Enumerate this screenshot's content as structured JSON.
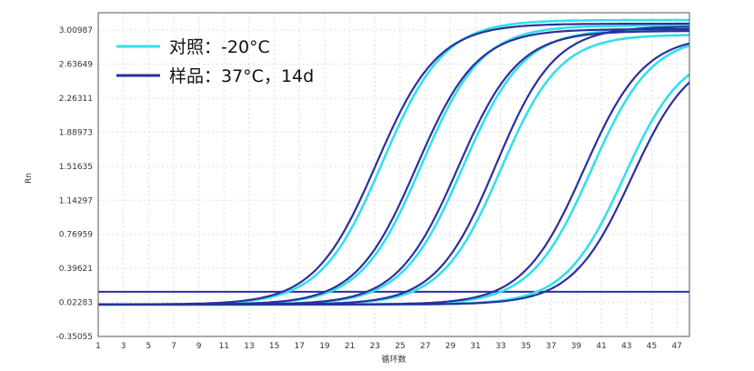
{
  "chart_data": {
    "type": "line",
    "xlabel": "循环数",
    "ylabel": "Rn",
    "xlim": [
      1,
      48
    ],
    "ylim": [
      -0.35055,
      3.2
    ],
    "x_ticks": [
      1,
      3,
      5,
      7,
      9,
      11,
      13,
      15,
      17,
      19,
      21,
      23,
      25,
      27,
      29,
      31,
      33,
      35,
      37,
      39,
      41,
      43,
      45,
      47
    ],
    "y_ticks": [
      -0.35055,
      0.02283,
      0.39621,
      0.76959,
      1.14297,
      1.51635,
      1.88973,
      2.26311,
      2.63649,
      3.00987
    ],
    "y_tick_labels": [
      "-0.35055",
      "0.02283",
      "0.39621",
      "0.76959",
      "1.14297",
      "1.51635",
      "1.88973",
      "2.26311",
      "2.63649",
      "3.00987"
    ],
    "grid": true,
    "legend_position": "top-left",
    "threshold": 0.14,
    "series": [
      {
        "name": "对照：-20°C",
        "color": "#33e0e8",
        "curves": [
          {
            "base": 0.0,
            "plateau": 3.12,
            "midpoint": 23.6,
            "slope": 2.45
          },
          {
            "base": 0.0,
            "plateau": 3.06,
            "midpoint": 26.7,
            "slope": 2.4
          },
          {
            "base": 0.0,
            "plateau": 3.02,
            "midpoint": 30.0,
            "slope": 2.4
          },
          {
            "base": 0.0,
            "plateau": 2.96,
            "midpoint": 33.0,
            "slope": 2.35
          },
          {
            "base": 0.0,
            "plateau": 2.95,
            "midpoint": 40.2,
            "slope": 2.4
          },
          {
            "base": 0.0,
            "plateau": 2.8,
            "midpoint": 42.8,
            "slope": 2.35
          }
        ]
      },
      {
        "name": "样品：37°C，14d",
        "color": "#2b2f9e",
        "curves": [
          {
            "base": 0.0,
            "plateau": 3.08,
            "midpoint": 23.1,
            "slope": 2.45
          },
          {
            "base": 0.0,
            "plateau": 3.02,
            "midpoint": 26.3,
            "slope": 2.4
          },
          {
            "base": 0.0,
            "plateau": 3.0,
            "midpoint": 29.6,
            "slope": 2.4
          },
          {
            "base": 0.0,
            "plateau": 3.05,
            "midpoint": 32.6,
            "slope": 2.35
          },
          {
            "base": 0.0,
            "plateau": 2.95,
            "midpoint": 39.6,
            "slope": 2.4
          },
          {
            "base": 0.0,
            "plateau": 2.78,
            "midpoint": 43.4,
            "slope": 2.35
          }
        ]
      }
    ]
  }
}
